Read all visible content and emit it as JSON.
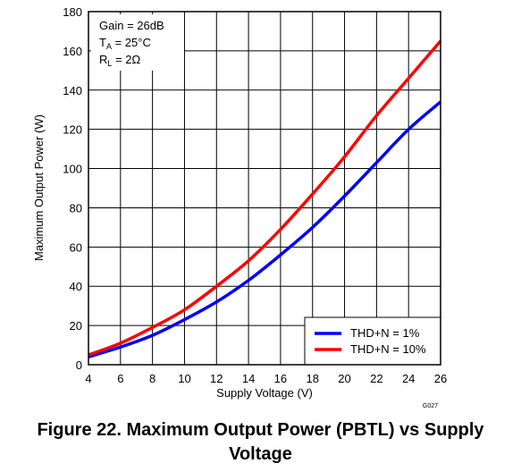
{
  "chart_data": {
    "type": "line",
    "xlabel": "Supply Voltage (V)",
    "ylabel": "Maximum Output Power (W)",
    "xlim": [
      4,
      26
    ],
    "ylim": [
      0,
      180
    ],
    "xticks": [
      4,
      6,
      8,
      10,
      12,
      14,
      16,
      18,
      20,
      22,
      24,
      26
    ],
    "yticks": [
      0,
      20,
      40,
      60,
      80,
      100,
      120,
      140,
      160,
      180
    ],
    "grid": true,
    "legend_position": "bottom-right",
    "annotations": {
      "line1": "Gain = 26dB",
      "line2_main": "T",
      "line2_sub": "A",
      "line2_rest": " = 25°C",
      "line3_main": "R",
      "line3_sub": "L",
      "line3_rest": " = 2Ω"
    },
    "code_label": "G027",
    "series": [
      {
        "name": "THD+N = 1%",
        "color": "#0000ff",
        "x": [
          4,
          6,
          8,
          10,
          12,
          14,
          16,
          18,
          20,
          22,
          24,
          26
        ],
        "y": [
          4,
          9,
          15,
          23,
          32,
          43,
          56,
          70,
          86,
          103,
          120,
          134
        ]
      },
      {
        "name": "THD+N = 10%",
        "color": "#ff0000",
        "x": [
          4,
          6,
          8,
          10,
          12,
          14,
          16,
          18,
          20,
          22,
          24,
          26
        ],
        "y": [
          5,
          11,
          19,
          28,
          40,
          53,
          69,
          87,
          106,
          127,
          146,
          165
        ]
      }
    ]
  },
  "caption": {
    "line1": "Figure 22. Maximum Output Power (PBTL) vs Supply",
    "line2": "Voltage"
  }
}
